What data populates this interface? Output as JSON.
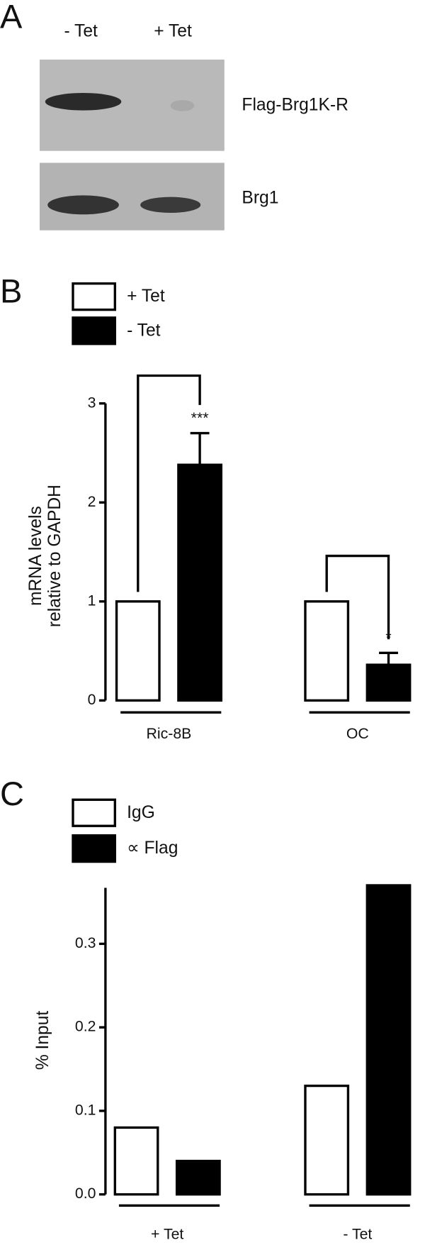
{
  "blot": {
    "panel_label": "A",
    "lanes": [
      "- Tet",
      "+ Tet"
    ],
    "bands": [
      "Flag-Brg1K-R",
      "Brg1"
    ]
  },
  "chart_data": [
    {
      "type": "bar",
      "panel_label": "B",
      "ylabel": [
        "mRNA levels",
        "relative to GAPDH"
      ],
      "categories": [
        "Ric-8B",
        "OC"
      ],
      "series": [
        {
          "name": "+ Tet",
          "color": "#ffffff",
          "values": [
            1,
            1
          ]
        },
        {
          "name": "- Tet",
          "color": "#000000",
          "values": [
            2.38,
            0.36
          ],
          "errors": [
            0.32,
            0.12
          ]
        }
      ],
      "significance": [
        "***",
        "*"
      ],
      "ylim": [
        0,
        3
      ],
      "yticks": [
        0,
        1,
        2,
        3
      ]
    },
    {
      "type": "bar",
      "panel_label": "C",
      "ylabel": [
        "% Input"
      ],
      "categories": [
        "+ Tet",
        "- Tet"
      ],
      "series": [
        {
          "name": "IgG",
          "color": "#ffffff",
          "values": [
            0.08,
            0.13
          ]
        },
        {
          "name": "∝ Flag",
          "color": "#000000",
          "values": [
            0.04,
            0.37
          ]
        }
      ],
      "ylim": [
        0,
        0.367
      ],
      "yticks": [
        {
          "value": 0,
          "label": "0.0"
        },
        0.1,
        0.2,
        0.3
      ]
    }
  ]
}
